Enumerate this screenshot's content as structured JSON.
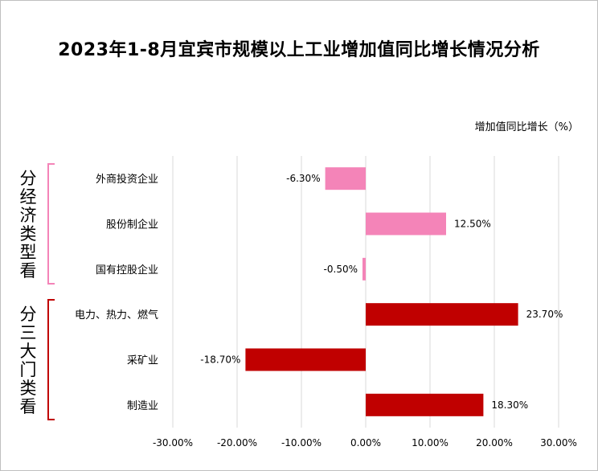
{
  "title": "2023年1-8月宜宾市规模以上工业增加值同比增长情况分析",
  "unit_label": "增加值同比增长（%）",
  "chart_data": {
    "type": "bar",
    "orientation": "horizontal",
    "categories": [
      "外商投资企业",
      "股份制企业",
      "国有控股企业",
      "电力、热力、燃气",
      "采矿业",
      "制造业"
    ],
    "values": [
      -6.3,
      12.5,
      -0.5,
      23.7,
      -18.7,
      18.3
    ],
    "value_labels": [
      "-6.30%",
      "12.50%",
      "-0.50%",
      "23.70%",
      "-18.70%",
      "18.30%"
    ],
    "bar_colors": [
      "#f484b8",
      "#f484b8",
      "#f484b8",
      "#c00000",
      "#c00000",
      "#c00000"
    ],
    "groups": [
      {
        "label": "分经济类型看",
        "range": [
          0,
          2
        ],
        "color": "#f484b8"
      },
      {
        "label": "分三大门类看",
        "range": [
          3,
          5
        ],
        "color": "#c00000"
      }
    ],
    "xlim": [
      -30,
      30
    ],
    "xticks": [
      -30,
      -20,
      -10,
      0,
      10,
      20,
      30
    ],
    "xtick_labels": [
      "-30.00%",
      "-20.00%",
      "-10.00%",
      "0.00%",
      "10.00%",
      "20.00%",
      "30.00%"
    ],
    "grid": "vertical"
  }
}
